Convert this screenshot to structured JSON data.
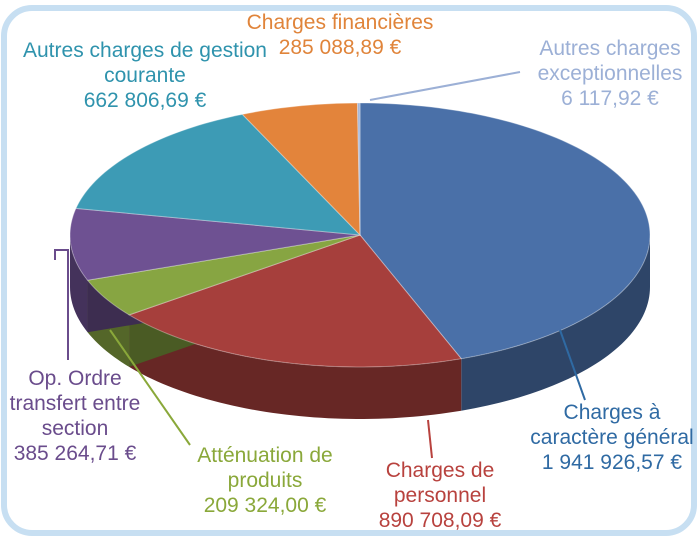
{
  "chart_data": {
    "type": "pie",
    "categories": [
      "Charges à caractère général",
      "Charges de personnel",
      "Atténuation de produits",
      "Op. Ordre transfert entre section",
      "Autres charges de gestion courante",
      "Charges financières",
      "Autres charges exceptionnelles"
    ],
    "values": [
      1941926.57,
      890708.09,
      209324.0,
      385264.71,
      662806.69,
      285088.89,
      6117.92
    ],
    "value_labels": [
      "1 941 926,57 €",
      "890 708,09 €",
      "209 324,00 €",
      "385 264,71 €",
      "662 806,69 €",
      "285 088,89 €",
      "6 117,92 €"
    ],
    "colors": [
      "#4a70a8",
      "#a63f3c",
      "#87a542",
      "#6e5192",
      "#3d9bb5",
      "#e3843b",
      "#a2b6da"
    ],
    "label_colors": [
      "#2f6aa3",
      "#b8423e",
      "#8aa83a",
      "#6a4c8c",
      "#2f93ad",
      "#e0843a",
      "#9cb0d6"
    ]
  }
}
